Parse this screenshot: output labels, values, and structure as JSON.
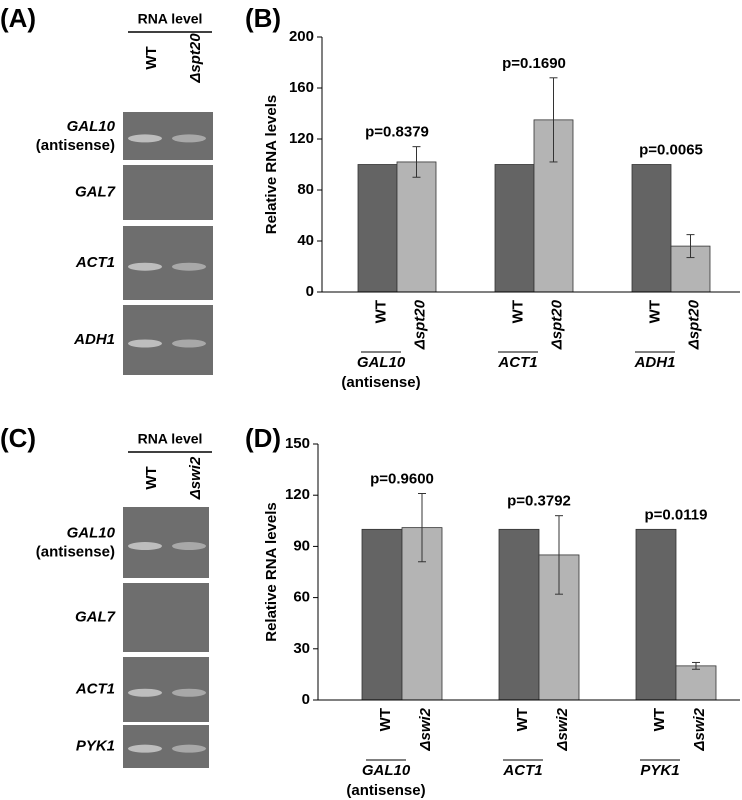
{
  "gels": [
    {
      "label": "(A)",
      "header": "RNA level",
      "lanes": [
        "WT",
        "Δspt20"
      ],
      "rows": [
        [
          "GAL10",
          "(antisense)"
        ],
        [
          "GAL7"
        ],
        [
          "ACT1"
        ],
        [
          "ADH1"
        ]
      ]
    },
    {
      "label": "(C)",
      "header": "RNA level",
      "lanes": [
        "WT",
        "Δswi2"
      ],
      "rows": [
        [
          "GAL10",
          "(antisense)"
        ],
        [
          "GAL7"
        ],
        [
          "ACT1"
        ],
        [
          "PYK1"
        ]
      ]
    }
  ],
  "chart_data": [
    {
      "type": "bar",
      "panel_label": "(B)",
      "y_label": "Relative RNA levels",
      "categories": [
        [
          "GAL10",
          "(antisense)"
        ],
        [
          "ACT1"
        ],
        [
          "ADH1"
        ]
      ],
      "series": [
        {
          "name": "WT",
          "color": "#646464",
          "values": [
            100,
            100,
            100
          ]
        },
        {
          "name": "Δspt20",
          "color": "#b4b4b4",
          "values": [
            102,
            135,
            36
          ],
          "errors": [
            12,
            33,
            9
          ]
        }
      ],
      "annotations": [
        "p=0.8379",
        "p=0.1690",
        "p=0.0065"
      ],
      "ylim": [
        0,
        200
      ],
      "yticks": [
        0,
        40,
        80,
        120,
        160,
        200
      ]
    },
    {
      "type": "bar",
      "panel_label": "(D)",
      "y_label": "Relative RNA levels",
      "categories": [
        [
          "GAL10",
          "(antisense)"
        ],
        [
          "ACT1"
        ],
        [
          "PYK1"
        ]
      ],
      "series": [
        {
          "name": "WT",
          "color": "#646464",
          "values": [
            100,
            100,
            100
          ]
        },
        {
          "name": "Δswi2",
          "color": "#b4b4b4",
          "values": [
            101,
            85,
            20
          ],
          "errors": [
            20,
            23,
            2
          ]
        }
      ],
      "annotations": [
        "p=0.9600",
        "p=0.3792",
        "p=0.0119"
      ],
      "ylim": [
        0,
        150
      ],
      "yticks": [
        0,
        30,
        60,
        90,
        120,
        150
      ]
    }
  ]
}
